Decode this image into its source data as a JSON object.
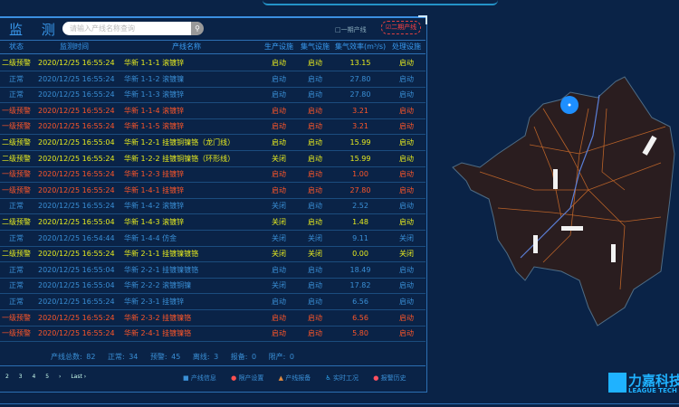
{
  "header": {
    "title": "监 测",
    "search_placeholder": "请输入产线名称查询",
    "line_type_1": "□一期产线",
    "line_type_2": "☑二期产线"
  },
  "columns": [
    "状态",
    "监测时间",
    "产线名称",
    "生产设施",
    "集气设施",
    "集气效率(m³/s)",
    "处理设施"
  ],
  "rows": [
    {
      "level": "yellow",
      "status": "二级预警",
      "time": "2020/12/25 16:55:24",
      "name": "华新 1-1-1 滚镀锌",
      "prod": "启动",
      "gas": "启动",
      "eff": "13.15",
      "treat": "启动"
    },
    {
      "level": "blue",
      "status": "正常",
      "time": "2020/12/25 16:55:24",
      "name": "华新 1-1-2 滚镀镍",
      "prod": "启动",
      "gas": "启动",
      "eff": "27.80",
      "treat": "启动"
    },
    {
      "level": "blue",
      "status": "正常",
      "time": "2020/12/25 16:55:24",
      "name": "华新 1-1-3 滚镀锌",
      "prod": "启动",
      "gas": "启动",
      "eff": "27.80",
      "treat": "启动"
    },
    {
      "level": "red",
      "status": "一级预警",
      "time": "2020/12/25 16:55:24",
      "name": "华新 1-1-4 滚镀锌",
      "prod": "启动",
      "gas": "启动",
      "eff": "3.21",
      "treat": "启动"
    },
    {
      "level": "red",
      "status": "一级预警",
      "time": "2020/12/25 16:55:24",
      "name": "华新 1-1-5 滚镀锌",
      "prod": "启动",
      "gas": "启动",
      "eff": "3.21",
      "treat": "启动"
    },
    {
      "level": "yellow",
      "status": "二级预警",
      "time": "2020/12/25 16:55:04",
      "name": "华新 1-2-1 挂镀铜镍铬（龙门线）",
      "prod": "启动",
      "gas": "启动",
      "eff": "15.99",
      "treat": "启动"
    },
    {
      "level": "yellow",
      "status": "二级预警",
      "time": "2020/12/25 16:55:24",
      "name": "华新 1-2-2 挂镀铜镍铬（环形线）",
      "prod": "关闭",
      "gas": "启动",
      "eff": "15.99",
      "treat": "启动"
    },
    {
      "level": "red",
      "status": "一级预警",
      "time": "2020/12/25 16:55:24",
      "name": "华新 1-2-3 挂镀锌",
      "prod": "启动",
      "gas": "启动",
      "eff": "1.00",
      "treat": "启动"
    },
    {
      "level": "red",
      "status": "一级预警",
      "time": "2020/12/25 16:55:24",
      "name": "华新 1-4-1 挂镀锌",
      "prod": "启动",
      "gas": "启动",
      "eff": "27.80",
      "treat": "启动"
    },
    {
      "level": "blue",
      "status": "正常",
      "time": "2020/12/25 16:55:24",
      "name": "华新 1-4-2 滚镀锌",
      "prod": "关闭",
      "gas": "启动",
      "eff": "2.52",
      "treat": "启动"
    },
    {
      "level": "yellow",
      "status": "二级预警",
      "time": "2020/12/25 16:55:04",
      "name": "华新 1-4-3 滚镀锌",
      "prod": "关闭",
      "gas": "启动",
      "eff": "1.48",
      "treat": "启动"
    },
    {
      "level": "blue",
      "status": "正常",
      "time": "2020/12/25 16:54:44",
      "name": "华新 1-4-4 仿金",
      "prod": "关闭",
      "gas": "关闭",
      "eff": "9.11",
      "treat": "关闭"
    },
    {
      "level": "yellow",
      "status": "二级预警",
      "time": "2020/12/25 16:55:24",
      "name": "华新 2-1-1 挂镀镍镀铬",
      "prod": "关闭",
      "gas": "关闭",
      "eff": "0.00",
      "treat": "关闭"
    },
    {
      "level": "blue",
      "status": "正常",
      "time": "2020/12/25 16:55:04",
      "name": "华新 2-2-1 挂镀镍镀铬",
      "prod": "启动",
      "gas": "启动",
      "eff": "18.49",
      "treat": "启动"
    },
    {
      "level": "blue",
      "status": "正常",
      "time": "2020/12/25 16:55:04",
      "name": "华新 2-2-2 滚镀铜镍",
      "prod": "关闭",
      "gas": "启动",
      "eff": "17.82",
      "treat": "启动"
    },
    {
      "level": "blue",
      "status": "正常",
      "time": "2020/12/25 16:55:24",
      "name": "华新 2-3-1 挂镀锌",
      "prod": "启动",
      "gas": "启动",
      "eff": "6.56",
      "treat": "启动"
    },
    {
      "level": "red",
      "status": "一级预警",
      "time": "2020/12/25 16:55:24",
      "name": "华新 2-3-2 挂镀镍铬",
      "prod": "启动",
      "gas": "启动",
      "eff": "6.56",
      "treat": "启动"
    },
    {
      "level": "red",
      "status": "一级预警",
      "time": "2020/12/25 16:55:24",
      "name": "华新 2-4-1 挂镀镍铬",
      "prod": "启动",
      "gas": "启动",
      "eff": "5.80",
      "treat": "启动"
    }
  ],
  "stats": {
    "total": "产线总数: 82",
    "normal": "正常: 34",
    "warning": "预警: 45",
    "offline": "离线: 3",
    "standby": "报备: 0",
    "stopped": "限产: 0"
  },
  "pagination": {
    "pages": [
      "2",
      "3",
      "4",
      "5"
    ],
    "next": "›",
    "last": "Last ›"
  },
  "legend": [
    {
      "icon": "info-icon",
      "label": "产线信息"
    },
    {
      "icon": "limit-icon",
      "label": "限产设置"
    },
    {
      "icon": "warning-icon",
      "label": "产线报备"
    },
    {
      "icon": "accessibility-icon",
      "label": "实时工况"
    },
    {
      "icon": "history-icon",
      "label": "报警历史"
    }
  ],
  "logo": {
    "cn": "力嘉科技",
    "en": "LEAGUE TECH"
  },
  "colors": {
    "yellow": "#e8ec1e",
    "blue": "#3a8fd6",
    "red": "#ff5628",
    "background": "#0a2347"
  }
}
